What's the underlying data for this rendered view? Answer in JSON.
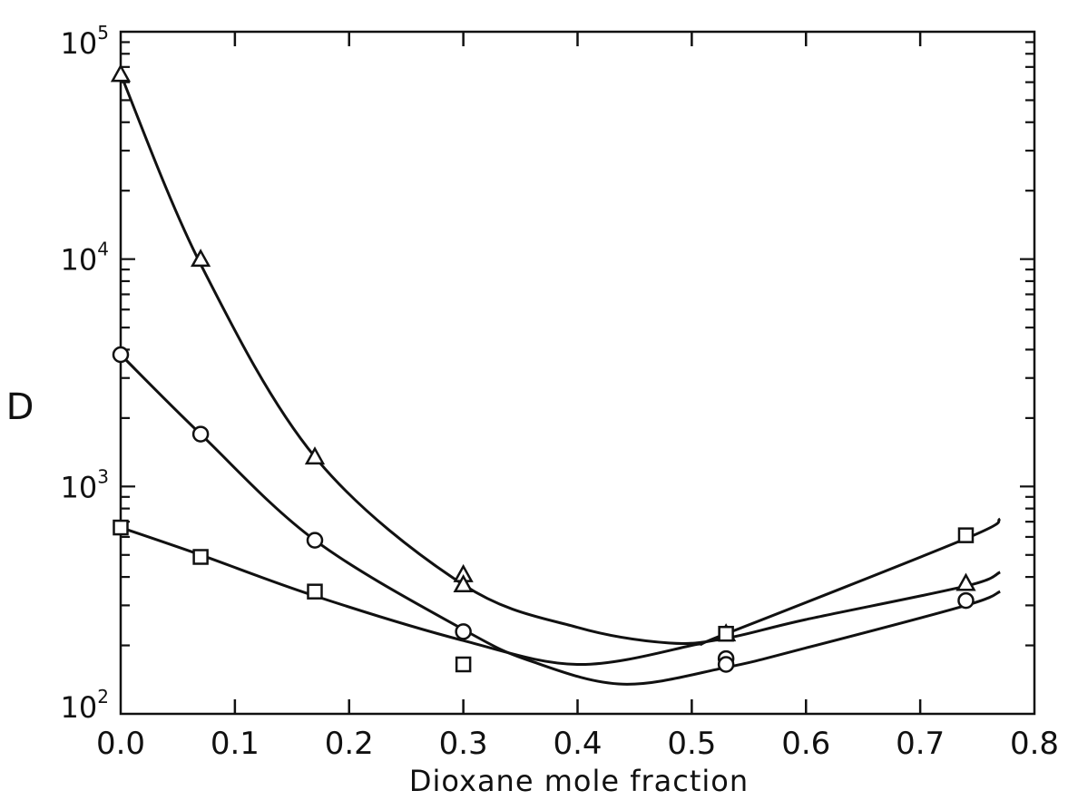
{
  "chart_data": {
    "type": "line",
    "title": "",
    "xlabel": "Dioxane mole fraction",
    "ylabel": "D",
    "xlim": [
      0.0,
      0.8
    ],
    "ylim": [
      100,
      100000
    ],
    "yscale": "log",
    "grid": false,
    "x_ticks": [
      "0.0",
      "0.1",
      "0.2",
      "0.3",
      "0.4",
      "0.5",
      "0.6",
      "0.7",
      "0.8"
    ],
    "y_ticks": [
      {
        "base": "10",
        "exp": "2"
      },
      {
        "base": "10",
        "exp": "3"
      },
      {
        "base": "10",
        "exp": "4"
      },
      {
        "base": "10",
        "exp": "5"
      }
    ],
    "series": [
      {
        "marker": "triangle",
        "points": [
          [
            0.0,
            65000
          ],
          [
            0.07,
            10000
          ],
          [
            0.17,
            1350
          ],
          [
            0.3,
            410
          ],
          [
            0.3,
            370
          ],
          [
            0.53,
            225
          ],
          [
            0.74,
            375
          ]
        ],
        "curve": [
          [
            0.0,
            65000
          ],
          [
            0.07,
            9500
          ],
          [
            0.17,
            1350
          ],
          [
            0.3,
            370
          ],
          [
            0.4,
            240
          ],
          [
            0.48,
            205
          ],
          [
            0.53,
            215
          ],
          [
            0.6,
            260
          ],
          [
            0.74,
            365
          ],
          [
            0.77,
            420
          ]
        ]
      },
      {
        "marker": "circle",
        "points": [
          [
            0.0,
            3800
          ],
          [
            0.07,
            1700
          ],
          [
            0.17,
            580
          ],
          [
            0.3,
            230
          ],
          [
            0.53,
            175
          ],
          [
            0.53,
            165
          ],
          [
            0.74,
            315
          ]
        ],
        "curve": [
          [
            0.0,
            3800
          ],
          [
            0.07,
            1700
          ],
          [
            0.17,
            580
          ],
          [
            0.3,
            235
          ],
          [
            0.36,
            170
          ],
          [
            0.44,
            135
          ],
          [
            0.53,
            160
          ],
          [
            0.6,
            195
          ],
          [
            0.74,
            300
          ],
          [
            0.77,
            345
          ]
        ]
      },
      {
        "marker": "square",
        "points": [
          [
            0.0,
            660
          ],
          [
            0.07,
            490
          ],
          [
            0.17,
            345
          ],
          [
            0.3,
            165
          ],
          [
            0.53,
            225
          ],
          [
            0.74,
            610
          ]
        ],
        "curve": [
          [
            0.0,
            660
          ],
          [
            0.07,
            500
          ],
          [
            0.17,
            330
          ],
          [
            0.3,
            210
          ],
          [
            0.4,
            165
          ],
          [
            0.5,
            200
          ],
          [
            0.53,
            225
          ],
          [
            0.74,
            590
          ],
          [
            0.77,
            720
          ]
        ]
      }
    ]
  }
}
